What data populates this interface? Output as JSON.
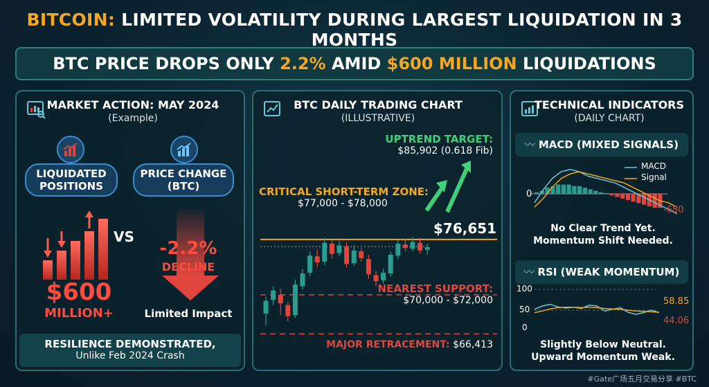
{
  "title": {
    "prefix": "BITCOIN:",
    "rest": " LIMITED VOLATILITY DURING LARGEST LIQUIDATION IN 3 MONTHS"
  },
  "banner": {
    "t1": "BTC PRICE DROPS ONLY ",
    "t2": "2.2%",
    "t3": " AMID ",
    "t4": "$600 MILLION",
    "t5": " LIQUIDATIONS"
  },
  "market": {
    "title": "MARKET ACTION: MAY 2024",
    "subtitle": "(Example)",
    "liq_label": [
      "LIQUIDATED",
      "POSITIONS"
    ],
    "price_label": [
      "PRICE CHANGE",
      "(BTC)"
    ],
    "vs": "VS",
    "amount": "$600",
    "amount_unit": "MILLION+",
    "change": "-2.2%",
    "change_word": "DECLINE",
    "impact": "Limited Impact",
    "footer1": "RESILIENCE DEMONSTRATED,",
    "footer2": "Unlike Feb 2024 Crash"
  },
  "chart": {
    "title": "BTC DAILY TRADING CHART",
    "subtitle": "(ILLUSTRATIVE)",
    "uptrend_label": "UPTREND TARGET:",
    "uptrend_value": "$85,902 (0.618 Fib)",
    "critical_label": "CRITICAL SHORT-TERM ZONE:",
    "critical_value": "$77,000 - $78,000",
    "current_price": "$76,651",
    "support_label": "NEAREST SUPPORT:",
    "support_value": "$70,000 - $72,000",
    "retrace_label": "MAJOR RETRACEMENT:",
    "retrace_value": "$66,413"
  },
  "chart_data": [
    {
      "type": "candlestick",
      "title": "BTC DAILY TRADING CHART",
      "subtitle": "(ILLUSTRATIVE)",
      "ylim": [
        64000,
        90000
      ],
      "levels": [
        {
          "name": "CRITICAL SHORT-TERM ZONE",
          "value": 77500
        },
        {
          "name": "NEAREST SUPPORT",
          "value": 71000
        },
        {
          "name": "MAJOR RETRACEMENT",
          "value": 66413
        },
        {
          "name": "Current",
          "value": 76651
        }
      ],
      "candles": [
        {
          "o": 68800,
          "c": 70300,
          "h": 70800,
          "l": 67400
        },
        {
          "o": 70400,
          "c": 71500,
          "h": 72000,
          "l": 69800
        },
        {
          "o": 71000,
          "c": 70000,
          "h": 71700,
          "l": 68600
        },
        {
          "o": 69800,
          "c": 68500,
          "h": 70200,
          "l": 67900
        },
        {
          "o": 68600,
          "c": 72200,
          "h": 72800,
          "l": 68300
        },
        {
          "o": 72000,
          "c": 73500,
          "h": 74000,
          "l": 71600
        },
        {
          "o": 73600,
          "c": 75600,
          "h": 76100,
          "l": 73200
        },
        {
          "o": 75500,
          "c": 74800,
          "h": 76300,
          "l": 74200
        },
        {
          "o": 74900,
          "c": 77100,
          "h": 77700,
          "l": 74500
        },
        {
          "o": 77000,
          "c": 75800,
          "h": 77400,
          "l": 75200
        },
        {
          "o": 75900,
          "c": 76800,
          "h": 77300,
          "l": 75500
        },
        {
          "o": 76700,
          "c": 74600,
          "h": 77200,
          "l": 74200
        },
        {
          "o": 74700,
          "c": 76200,
          "h": 76800,
          "l": 74400
        },
        {
          "o": 76100,
          "c": 75300,
          "h": 76500,
          "l": 74900
        },
        {
          "o": 75200,
          "c": 73400,
          "h": 75700,
          "l": 72900
        },
        {
          "o": 73300,
          "c": 72600,
          "h": 73800,
          "l": 72000
        },
        {
          "o": 72700,
          "c": 73600,
          "h": 74100,
          "l": 72300
        },
        {
          "o": 73500,
          "c": 75700,
          "h": 76100,
          "l": 73100
        },
        {
          "o": 75600,
          "c": 77000,
          "h": 77400,
          "l": 75200
        },
        {
          "o": 76900,
          "c": 76500,
          "h": 77600,
          "l": 76100
        },
        {
          "o": 76400,
          "c": 77200,
          "h": 77800,
          "l": 76100
        },
        {
          "o": 77100,
          "c": 76200,
          "h": 77700,
          "l": 75800
        },
        {
          "o": 76300,
          "c": 76600,
          "h": 77000,
          "l": 75700
        }
      ]
    },
    {
      "type": "bar",
      "title": "MACD (MIXED SIGNALS)",
      "series": [
        {
          "name": "MACD",
          "values": [
            -0.4,
            0.2,
            0.7,
            1.0,
            1.1,
            1.0,
            0.8,
            0.7,
            0.6,
            0.5,
            0.3,
            0.1,
            -0.1,
            -0.3,
            -0.5,
            -0.7,
            -0.9
          ]
        },
        {
          "name": "Signal",
          "values": [
            -0.6,
            -0.2,
            0.3,
            0.7,
            0.9,
            1.0,
            0.9,
            0.8,
            0.7,
            0.6,
            0.5,
            0.3,
            0.1,
            -0.1,
            -0.3,
            -0.4,
            -0.6
          ]
        }
      ],
      "histogram": [
        0.1,
        0.2,
        0.4,
        0.5,
        0.6,
        0.6,
        0.6,
        0.5,
        0.5,
        0.4,
        0.3,
        0.2,
        0.1,
        0.05,
        -0.1,
        -0.2,
        -0.3,
        -0.4,
        -0.5,
        -0.6,
        -0.7,
        -0.8,
        -0.9,
        -0.9
      ],
      "zero_label": "0",
      "value_label": "-680",
      "note1": "No Clear Trend Yet.",
      "note2": "Momentum Shift Needed."
    },
    {
      "type": "line",
      "title": "RSI (WEAK MOMENTUM)",
      "ylim": [
        0,
        100
      ],
      "yticks": [
        "100",
        "50",
        "0"
      ],
      "series": [
        {
          "name": "RSI",
          "values": [
            52,
            60,
            64,
            58,
            55,
            57,
            54,
            62,
            60,
            48,
            52,
            56,
            45,
            40,
            44,
            50,
            44
          ]
        },
        {
          "name": "Signal",
          "values": [
            44,
            48,
            53,
            56,
            57,
            57,
            56,
            57,
            56,
            54,
            53,
            52,
            50,
            48,
            47,
            46,
            45
          ]
        }
      ],
      "value_a": "58.85",
      "value_b": "44.06",
      "note1": "Slightly Below Neutral.",
      "note2": "Upward Momentum Weak."
    }
  ],
  "indicators": {
    "title": "TECHNICAL INDICATORS",
    "subtitle": "(DAILY CHART)",
    "macd_title": "MACD (MIXED SIGNALS)",
    "macd_legend_a": "MACD",
    "macd_legend_b": "Signal",
    "rsi_title": "RSI (WEAK MOMENTUM)"
  },
  "watermark": "#Gate广场五月交易分享 #BTC",
  "colors": {
    "orange": "#f5a623",
    "green": "#3fd17a",
    "red": "#e0463e",
    "teal": "#2a9d8f"
  }
}
